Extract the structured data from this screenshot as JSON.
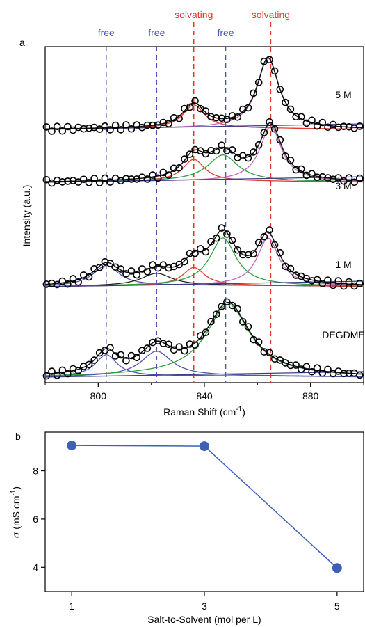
{
  "panel_a": {
    "label": "a",
    "annotations": {
      "free_label": "free",
      "solvating_label": "solvating",
      "free_color": "#4a55b0",
      "solvating_color": "#e03a2a"
    },
    "xlabel_main": "Raman Shift (cm",
    "xlabel_sup": "-1",
    "xlabel_close": ")",
    "ylabel": "Intensity (a.u.)",
    "xticks": [
      "800",
      "840",
      "880"
    ],
    "traces": [
      {
        "label": "5 M"
      },
      {
        "label": "3 M"
      },
      {
        "label": "1 M"
      },
      {
        "label": "DEGDME"
      }
    ]
  },
  "panel_b": {
    "label": "b",
    "ylabel_symbol": "σ",
    "ylabel_main": " (mS cm",
    "ylabel_sup": "-1",
    "ylabel_close": ")",
    "xlabel": "Salt-to-Solvent (mol per L)",
    "xticks": [
      "1",
      "3",
      "5"
    ],
    "yticks": [
      "4",
      "6",
      "8"
    ],
    "marker_color": "#3d5fb5"
  },
  "chart_data": [
    {
      "type": "line",
      "title": "",
      "xlabel": "Raman Shift (cm-1)",
      "ylabel": "Intensity (a.u.)",
      "xlim": [
        780,
        900
      ],
      "grid": false,
      "reference_lines": {
        "free": [
          803,
          822,
          848
        ],
        "solvating": [
          836,
          865
        ]
      },
      "series": [
        {
          "name": "5 M",
          "peaks": [
            {
              "center": 836,
              "height": 0.3,
              "width": 5,
              "color": "#e03a2a"
            },
            {
              "center": 864,
              "height": 0.9,
              "width": 5,
              "color": "#c266c2"
            }
          ]
        },
        {
          "name": "3 M",
          "peaks": [
            {
              "center": 836,
              "height": 0.3,
              "width": 5,
              "color": "#e03a2a"
            },
            {
              "center": 847,
              "height": 0.36,
              "width": 7,
              "color": "#2e9e3e"
            },
            {
              "center": 865,
              "height": 0.75,
              "width": 5,
              "color": "#c266c2"
            }
          ]
        },
        {
          "name": "1 M",
          "peaks": [
            {
              "center": 803,
              "height": 0.25,
              "width": 6,
              "color": "#4a55b0"
            },
            {
              "center": 822,
              "height": 0.15,
              "width": 7,
              "color": "#222222"
            },
            {
              "center": 836,
              "height": 0.22,
              "width": 5,
              "color": "#e03a2a"
            },
            {
              "center": 847,
              "height": 0.58,
              "width": 6,
              "color": "#2e9e3e"
            },
            {
              "center": 864,
              "height": 0.58,
              "width": 5,
              "color": "#c266c2"
            }
          ]
        },
        {
          "name": "DEGDME",
          "peaks": [
            {
              "center": 803,
              "height": 0.28,
              "width": 5,
              "color": "#4a55b0"
            },
            {
              "center": 822,
              "height": 0.32,
              "width": 7,
              "color": "#4a55b0"
            },
            {
              "center": 849,
              "height": 0.92,
              "width": 10,
              "color": "#2e9e3e"
            }
          ]
        }
      ]
    },
    {
      "type": "scatter",
      "title": "",
      "xlabel": "Salt-to-Solvent (mol per L)",
      "ylabel": "σ (mS cm-1)",
      "xlim": [
        0.6,
        5.4
      ],
      "ylim": [
        3,
        9.6
      ],
      "x": [
        1,
        3,
        5
      ],
      "y": [
        9.05,
        9.02,
        3.97
      ],
      "grid": false
    }
  ]
}
